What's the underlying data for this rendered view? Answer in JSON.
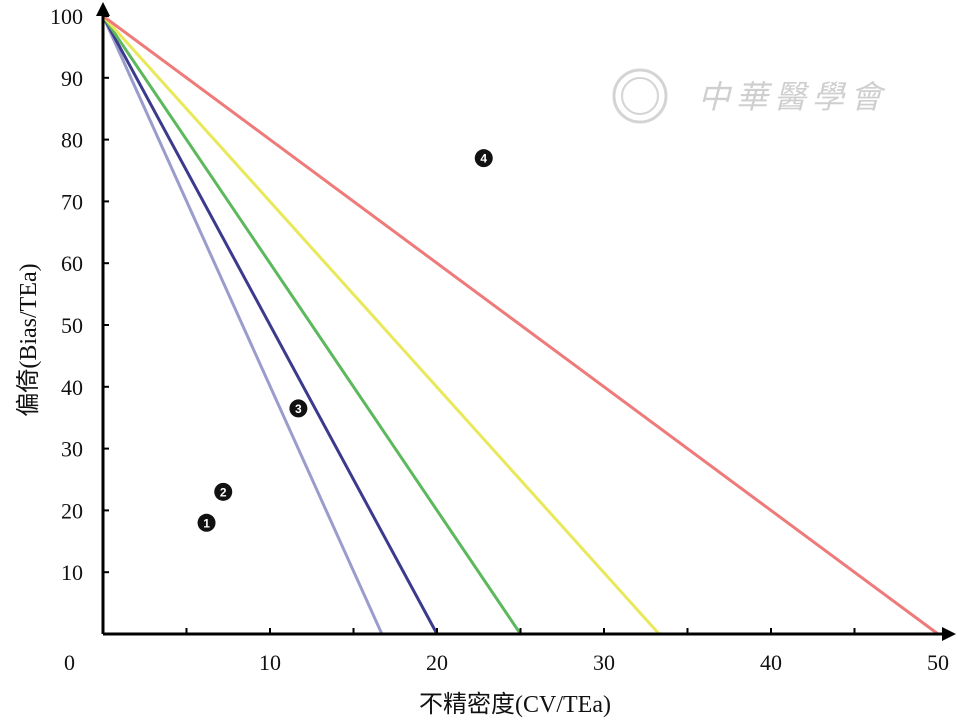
{
  "chart_data": {
    "type": "line",
    "xlabel": "不精密度(CV/TEa)",
    "ylabel": "偏倚(Bias/TEa)",
    "xlim": [
      0,
      50
    ],
    "ylim": [
      0,
      100
    ],
    "x_ticks": [
      10,
      20,
      30,
      40,
      50
    ],
    "y_ticks": [
      10,
      20,
      30,
      40,
      50,
      60,
      70,
      80,
      90,
      100
    ],
    "origin_label": "0",
    "grid": false,
    "series": [
      {
        "x": [
          0,
          16.7
        ],
        "y": [
          100,
          0
        ],
        "color": "#9a9ccc"
      },
      {
        "x": [
          0,
          20
        ],
        "y": [
          100,
          0
        ],
        "color": "#3b3a8c"
      },
      {
        "x": [
          0,
          25
        ],
        "y": [
          100,
          0
        ],
        "color": "#5cb85c"
      },
      {
        "x": [
          0,
          33.3
        ],
        "y": [
          100,
          0
        ],
        "color": "#e8e85a"
      },
      {
        "x": [
          0,
          50
        ],
        "y": [
          100,
          0
        ],
        "color": "#ee7a7a"
      }
    ],
    "points": [
      {
        "label": "1",
        "x": 6.2,
        "y": 18
      },
      {
        "label": "2",
        "x": 7.2,
        "y": 23
      },
      {
        "label": "3",
        "x": 11.7,
        "y": 36.5
      },
      {
        "label": "4",
        "x": 22.8,
        "y": 77
      }
    ]
  },
  "watermark": {
    "text": "中華醫學會"
  }
}
